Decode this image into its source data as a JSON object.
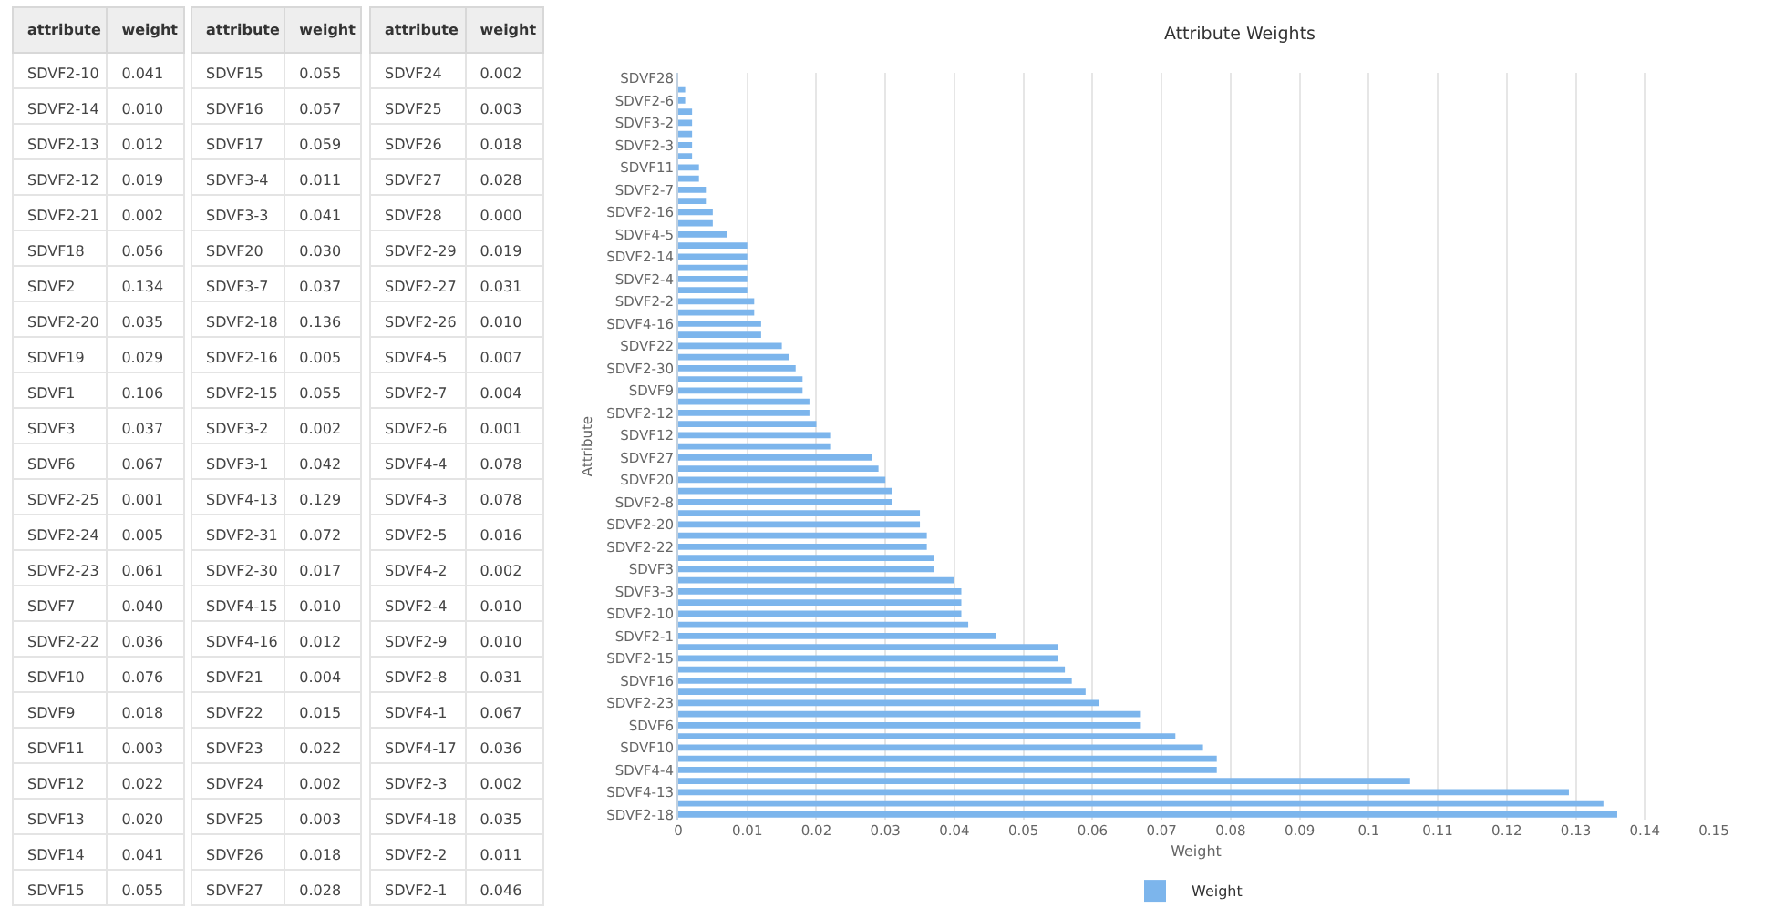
{
  "chart_data": [
    {
      "type": "other",
      "xlabel": "attribute",
      "ylabel": "weight",
      "categories": [
        "SDVF2-10",
        "SDVF2-14",
        "SDVF2-13",
        "SDVF2-12",
        "SDVF2-21",
        "SDVF18",
        "SDVF2",
        "SDVF2-20",
        "SDVF19",
        "SDVF1",
        "SDVF3",
        "SDVF6",
        "SDVF2-25",
        "SDVF2-24",
        "SDVF2-23",
        "SDVF7",
        "SDVF2-22",
        "SDVF10",
        "SDVF9",
        "SDVF11",
        "SDVF12",
        "SDVF13",
        "SDVF14",
        "SDVF15"
      ],
      "value_labels": [
        "0.041",
        "0.010",
        "0.012",
        "0.019",
        "0.002",
        "0.056",
        "0.134",
        "0.035",
        "0.029",
        "0.106",
        "0.037",
        "0.067",
        "0.001",
        "0.005",
        "0.061",
        "0.040",
        "0.036",
        "0.076",
        "0.018",
        "0.003",
        "0.022",
        "0.020",
        "0.041",
        "0.055"
      ]
    },
    {
      "type": "other",
      "xlabel": "attribute",
      "ylabel": "weight",
      "categories": [
        "SDVF15",
        "SDVF16",
        "SDVF17",
        "SDVF3-4",
        "SDVF3-3",
        "SDVF20",
        "SDVF3-7",
        "SDVF2-18",
        "SDVF2-16",
        "SDVF2-15",
        "SDVF3-2",
        "SDVF3-1",
        "SDVF4-13",
        "SDVF2-31",
        "SDVF2-30",
        "SDVF4-15",
        "SDVF4-16",
        "SDVF21",
        "SDVF22",
        "SDVF23",
        "SDVF24",
        "SDVF25",
        "SDVF26",
        "SDVF27"
      ],
      "value_labels": [
        "0.055",
        "0.057",
        "0.059",
        "0.011",
        "0.041",
        "0.030",
        "0.037",
        "0.136",
        "0.005",
        "0.055",
        "0.002",
        "0.042",
        "0.129",
        "0.072",
        "0.017",
        "0.010",
        "0.012",
        "0.004",
        "0.015",
        "0.022",
        "0.002",
        "0.003",
        "0.018",
        "0.028"
      ]
    },
    {
      "type": "other",
      "xlabel": "attribute",
      "ylabel": "weight",
      "categories": [
        "SDVF24",
        "SDVF25",
        "SDVF26",
        "SDVF27",
        "SDVF28",
        "SDVF2-29",
        "SDVF2-27",
        "SDVF2-26",
        "SDVF4-5",
        "SDVF2-7",
        "SDVF2-6",
        "SDVF4-4",
        "SDVF4-3",
        "SDVF2-5",
        "SDVF4-2",
        "SDVF2-4",
        "SDVF2-9",
        "SDVF2-8",
        "SDVF4-1",
        "SDVF4-17",
        "SDVF2-3",
        "SDVF4-18",
        "SDVF2-2",
        "SDVF2-1"
      ],
      "value_labels": [
        "0.002",
        "0.003",
        "0.018",
        "0.028",
        "0.000",
        "0.019",
        "0.031",
        "0.010",
        "0.007",
        "0.004",
        "0.001",
        "0.078",
        "0.078",
        "0.016",
        "0.002",
        "0.010",
        "0.010",
        "0.031",
        "0.067",
        "0.036",
        "0.002",
        "0.035",
        "0.011",
        "0.046"
      ]
    },
    {
      "type": "bar",
      "orientation": "horizontal",
      "title": "Attribute Weights",
      "xlabel": "Weight",
      "ylabel": "Attribute",
      "categories": [
        "SDVF28",
        null,
        "SDVF2-6",
        null,
        "SDVF3-2",
        null,
        "SDVF2-3",
        null,
        "SDVF11",
        null,
        "SDVF2-7",
        null,
        "SDVF2-16",
        null,
        "SDVF4-5",
        null,
        "SDVF2-14",
        null,
        "SDVF2-4",
        null,
        "SDVF2-2",
        null,
        "SDVF4-16",
        null,
        "SDVF22",
        null,
        "SDVF2-30",
        null,
        "SDVF9",
        null,
        "SDVF2-12",
        null,
        "SDVF12",
        null,
        "SDVF27",
        null,
        "SDVF20",
        null,
        "SDVF2-8",
        null,
        "SDVF2-20",
        null,
        "SDVF2-22",
        null,
        "SDVF3",
        null,
        "SDVF3-3",
        null,
        "SDVF2-10",
        null,
        "SDVF2-1",
        null,
        "SDVF2-15",
        null,
        "SDVF16",
        null,
        "SDVF2-23",
        null,
        "SDVF6",
        null,
        "SDVF10",
        null,
        "SDVF4-4",
        null,
        "SDVF4-13",
        null,
        "SDVF2-18"
      ],
      "series": [
        {
          "name": "Weight",
          "color": "#7cb5ec",
          "values": [
            0.0,
            0.001,
            0.001,
            0.002,
            0.002,
            0.002,
            0.002,
            0.002,
            0.003,
            0.003,
            0.004,
            0.004,
            0.005,
            0.005,
            0.007,
            0.01,
            0.01,
            0.01,
            0.01,
            0.01,
            0.011,
            0.011,
            0.012,
            0.012,
            0.015,
            0.016,
            0.017,
            0.018,
            0.018,
            0.019,
            0.019,
            0.02,
            0.022,
            0.022,
            0.028,
            0.029,
            0.03,
            0.031,
            0.031,
            0.035,
            0.035,
            0.036,
            0.036,
            0.037,
            0.037,
            0.04,
            0.041,
            0.041,
            0.041,
            0.042,
            0.046,
            0.055,
            0.055,
            0.056,
            0.057,
            0.059,
            0.061,
            0.067,
            0.067,
            0.072,
            0.076,
            0.078,
            0.078,
            0.106,
            0.129,
            0.134,
            0.136
          ]
        }
      ],
      "xlim": [
        0,
        0.15
      ],
      "xticks": [
        0,
        0.01,
        0.02,
        0.03,
        0.04,
        0.05,
        0.06,
        0.07,
        0.08,
        0.09,
        0.1,
        0.11,
        0.12,
        0.13,
        0.14,
        0.15
      ],
      "grid": "x",
      "legend": "bottom"
    }
  ]
}
